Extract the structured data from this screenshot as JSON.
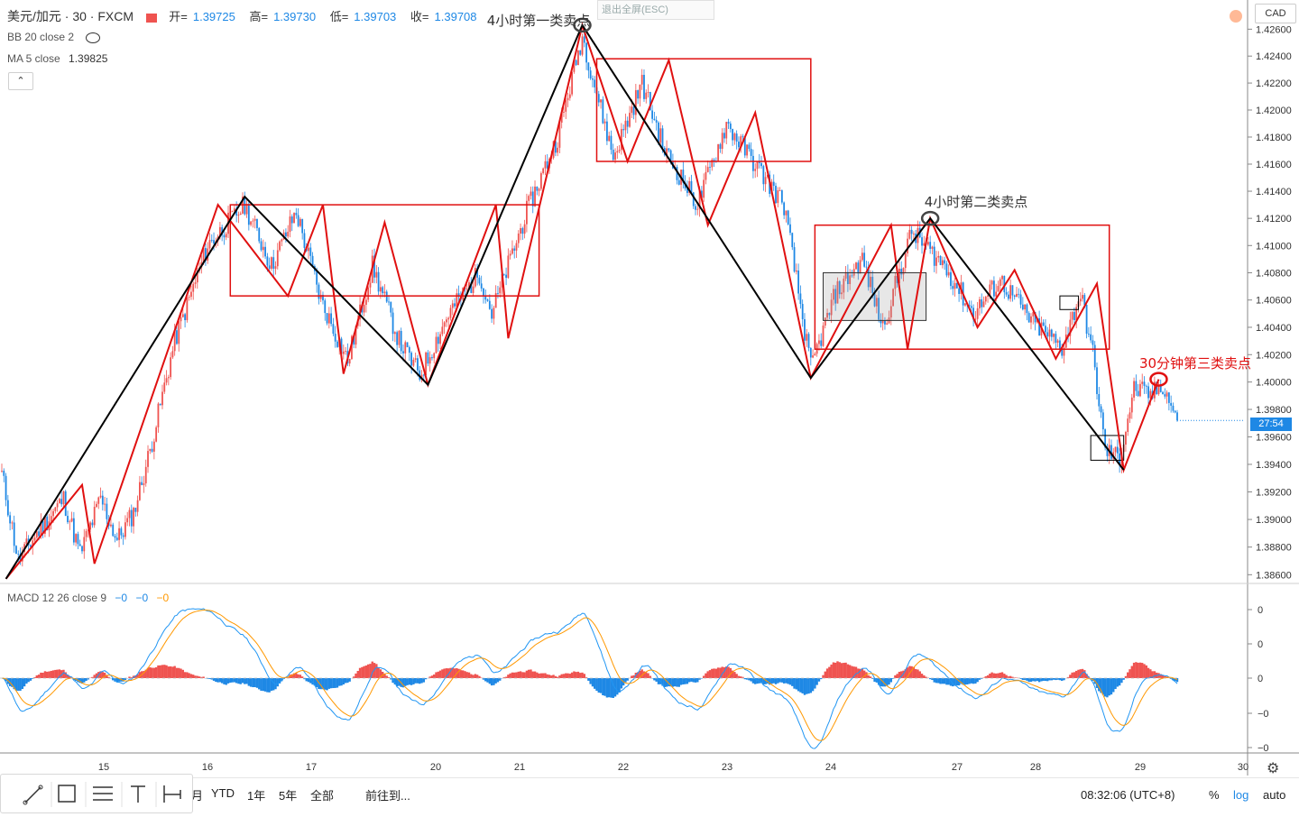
{
  "header": {
    "symbol": "美元/加元 · 30 · FXCM",
    "ohlc": [
      {
        "label": "开=",
        "value": "1.39725"
      },
      {
        "label": "高=",
        "value": "1.39730"
      },
      {
        "label": "低=",
        "value": "1.39703"
      },
      {
        "label": "收=",
        "value": "1.39708"
      }
    ],
    "indicator_bb": "BB 20 close 2",
    "indicator_ma": "MA 5 close",
    "indicator_ma_value": "1.39825",
    "collapse_icon": "chevron-up-icon",
    "exit_fullscreen": "退出全屏(ESC)",
    "currency": "CAD",
    "current_price_tag": "27:54"
  },
  "annotations": {
    "a1": "4小时第一类卖点",
    "a2": "4小时第二类卖点",
    "a3": "30分钟第三类卖点"
  },
  "macd": {
    "label": "MACD 12 26 close 9",
    "v1": "−0",
    "v2": "−0",
    "v3": "−0",
    "axis_ticks": [
      "0",
      "0",
      "0",
      "−0",
      "−0"
    ]
  },
  "bottom": {
    "ranges": [
      "月",
      "YTD",
      "1年",
      "5年",
      "全部"
    ],
    "goto": "前往到...",
    "clock": "08:32:06 (UTC+8)",
    "pct": "%",
    "log": "log",
    "auto": "auto"
  },
  "colors": {
    "up": "#ef5350",
    "down": "#1e88e5",
    "zigzag_black": "#000000",
    "zigzag_red": "#e01010",
    "box_red": "#e01010",
    "macd_line": "#2196f3",
    "signal_line": "#ff9800"
  },
  "chart_data": {
    "type": "candlestick",
    "symbol": "美元/加元",
    "interval": "30",
    "x_tick_labels": [
      "15",
      "16",
      "17",
      "20",
      "21",
      "22",
      "23",
      "24",
      "27",
      "28",
      "29",
      "30"
    ],
    "y_tick_labels": [
      "1.42600",
      "1.42400",
      "1.42200",
      "1.42000",
      "1.41800",
      "1.41600",
      "1.41400",
      "1.41200",
      "1.41000",
      "1.40800",
      "1.40600",
      "1.40400",
      "1.40200",
      "1.40000",
      "1.39800",
      "1.39600",
      "1.39400",
      "1.39200",
      "1.39000",
      "1.38800",
      "1.38600"
    ],
    "ylim": [
      1.3855,
      1.4275
    ],
    "scale": "log",
    "grid": false,
    "anchors": [
      {
        "x": 0,
        "y": 1.3933
      },
      {
        "x": 8,
        "y": 1.387
      },
      {
        "x": 17,
        "y": 1.389
      },
      {
        "x": 30,
        "y": 1.3915
      },
      {
        "x": 38,
        "y": 1.3875
      },
      {
        "x": 48,
        "y": 1.3915
      },
      {
        "x": 56,
        "y": 1.3885
      },
      {
        "x": 64,
        "y": 1.3905
      },
      {
        "x": 72,
        "y": 1.395
      },
      {
        "x": 84,
        "y": 1.403
      },
      {
        "x": 100,
        "y": 1.41
      },
      {
        "x": 118,
        "y": 1.413
      },
      {
        "x": 131,
        "y": 1.4085
      },
      {
        "x": 143,
        "y": 1.4125
      },
      {
        "x": 155,
        "y": 1.406
      },
      {
        "x": 168,
        "y": 1.4015
      },
      {
        "x": 180,
        "y": 1.4085
      },
      {
        "x": 193,
        "y": 1.403
      },
      {
        "x": 203,
        "y": 1.4005
      },
      {
        "x": 217,
        "y": 1.405
      },
      {
        "x": 232,
        "y": 1.408
      },
      {
        "x": 238,
        "y": 1.405
      },
      {
        "x": 255,
        "y": 1.4125
      },
      {
        "x": 270,
        "y": 1.418
      },
      {
        "x": 282,
        "y": 1.4255
      },
      {
        "x": 297,
        "y": 1.4165
      },
      {
        "x": 311,
        "y": 1.422
      },
      {
        "x": 322,
        "y": 1.417
      },
      {
        "x": 338,
        "y": 1.413
      },
      {
        "x": 352,
        "y": 1.419
      },
      {
        "x": 366,
        "y": 1.416
      },
      {
        "x": 380,
        "y": 1.413
      },
      {
        "x": 393,
        "y": 1.401
      },
      {
        "x": 405,
        "y": 1.4065
      },
      {
        "x": 418,
        "y": 1.409
      },
      {
        "x": 428,
        "y": 1.404
      },
      {
        "x": 442,
        "y": 1.411
      },
      {
        "x": 458,
        "y": 1.4085
      },
      {
        "x": 472,
        "y": 1.405
      },
      {
        "x": 485,
        "y": 1.4075
      },
      {
        "x": 500,
        "y": 1.4045
      },
      {
        "x": 515,
        "y": 1.4025
      },
      {
        "x": 524,
        "y": 1.4065
      },
      {
        "x": 530,
        "y": 1.402
      },
      {
        "x": 536,
        "y": 1.395
      },
      {
        "x": 543,
        "y": 1.3945
      },
      {
        "x": 550,
        "y": 1.3995
      },
      {
        "x": 558,
        "y": 1.399
      },
      {
        "x": 564,
        "y": 1.3998
      },
      {
        "x": 571,
        "y": 1.3972
      }
    ],
    "black_zigzag": [
      {
        "x": 2,
        "y": 1.3857
      },
      {
        "x": 118,
        "y": 1.4136
      },
      {
        "x": 207,
        "y": 1.3998
      },
      {
        "x": 282,
        "y": 1.4263
      },
      {
        "x": 393,
        "y": 1.4003
      },
      {
        "x": 451,
        "y": 1.412
      },
      {
        "x": 545,
        "y": 1.3936
      }
    ],
    "red_zigzag": [
      {
        "x": 2,
        "y": 1.3857
      },
      {
        "x": 39,
        "y": 1.3925
      },
      {
        "x": 45,
        "y": 1.3868
      },
      {
        "x": 105,
        "y": 1.413
      },
      {
        "x": 139,
        "y": 1.4063
      },
      {
        "x": 156,
        "y": 1.413
      },
      {
        "x": 166,
        "y": 1.4006
      },
      {
        "x": 186,
        "y": 1.4117
      },
      {
        "x": 207,
        "y": 1.3998
      },
      {
        "x": 240,
        "y": 1.413
      },
      {
        "x": 246,
        "y": 1.4032
      },
      {
        "x": 282,
        "y": 1.4263
      },
      {
        "x": 304,
        "y": 1.4162
      },
      {
        "x": 324,
        "y": 1.4237
      },
      {
        "x": 343,
        "y": 1.4115
      },
      {
        "x": 366,
        "y": 1.4198
      },
      {
        "x": 393,
        "y": 1.4003
      },
      {
        "x": 432,
        "y": 1.4115
      },
      {
        "x": 440,
        "y": 1.4024
      },
      {
        "x": 451,
        "y": 1.412
      },
      {
        "x": 474,
        "y": 1.404
      },
      {
        "x": 492,
        "y": 1.4082
      },
      {
        "x": 512,
        "y": 1.4017
      },
      {
        "x": 532,
        "y": 1.4072
      },
      {
        "x": 545,
        "y": 1.3936
      },
      {
        "x": 562,
        "y": 1.4002
      }
    ],
    "boxes": [
      {
        "x0": 111,
        "x1": 261,
        "y0": 1.4063,
        "y1": 1.413,
        "color": "red"
      },
      {
        "x0": 289,
        "x1": 393,
        "y0": 1.4162,
        "y1": 1.4238,
        "color": "red"
      },
      {
        "x0": 395,
        "x1": 538,
        "y0": 1.4024,
        "y1": 1.4115,
        "color": "red"
      },
      {
        "x0": 399,
        "x1": 449,
        "y0": 1.4045,
        "y1": 1.408,
        "color": "gray"
      },
      {
        "x0": 514,
        "x1": 523,
        "y0": 1.4053,
        "y1": 1.4063,
        "color": "black"
      },
      {
        "x0": 529,
        "x1": 545,
        "y0": 1.3943,
        "y1": 1.3961,
        "color": "black"
      }
    ],
    "markers": [
      {
        "x": 282,
        "y": 1.4263,
        "color": "gray"
      },
      {
        "x": 451,
        "y": 1.412,
        "color": "gray"
      },
      {
        "x": 562,
        "y": 1.4002,
        "color": "red"
      }
    ]
  }
}
